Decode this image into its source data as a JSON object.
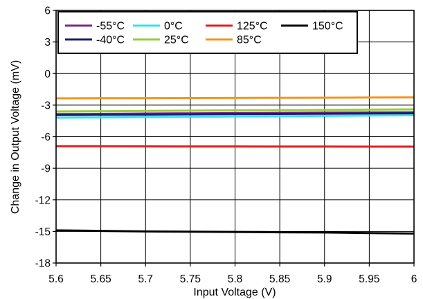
{
  "chart_data": {
    "type": "line",
    "xlabel": "Input Voltage (V)",
    "ylabel": "Change in Output Voltage (mV)",
    "xlim": [
      5.6,
      6.0
    ],
    "ylim": [
      -18,
      6
    ],
    "x_ticks": [
      5.6,
      5.65,
      5.7,
      5.75,
      5.8,
      5.85,
      5.9,
      5.95,
      6.0
    ],
    "x_tick_labels": [
      "5.6",
      "5.65",
      "5.7",
      "5.75",
      "5.8",
      "5.85",
      "5.9",
      "5.95",
      "6"
    ],
    "y_ticks": [
      6,
      3,
      0,
      -3,
      -6,
      -9,
      -12,
      -15,
      -18
    ],
    "y_tick_labels": [
      "6",
      "3",
      "0",
      "-3",
      "-6",
      "-9",
      "-12",
      "-15",
      "-18"
    ],
    "grid": true,
    "legend_position": "top-left",
    "x": [
      5.6,
      5.65,
      5.7,
      5.75,
      5.8,
      5.85,
      5.9,
      5.95,
      6.0
    ],
    "series": [
      {
        "name": "-55°C",
        "color": "#7b2a8c",
        "values": [
          -3.85,
          -3.83,
          -3.8,
          -3.78,
          -3.76,
          -3.74,
          -3.72,
          -3.7,
          -3.68
        ]
      },
      {
        "name": "-40°C",
        "color": "#1c1c6e",
        "values": [
          -3.95,
          -3.92,
          -3.9,
          -3.87,
          -3.85,
          -3.83,
          -3.81,
          -3.79,
          -3.77
        ]
      },
      {
        "name": "0°C",
        "color": "#33e5f2",
        "values": [
          -4.2,
          -4.17,
          -4.14,
          -4.11,
          -4.08,
          -4.05,
          -4.02,
          -3.99,
          -3.96
        ]
      },
      {
        "name": "25°C",
        "color": "#9acc3a",
        "values": [
          -3.6,
          -3.58,
          -3.55,
          -3.53,
          -3.5,
          -3.48,
          -3.46,
          -3.43,
          -3.4
        ]
      },
      {
        "name": "125°C",
        "color": "#e81b1b",
        "values": [
          -6.9,
          -6.91,
          -6.92,
          -6.93,
          -6.93,
          -6.94,
          -6.94,
          -6.95,
          -6.95
        ]
      },
      {
        "name": "85°C",
        "color": "#f7941d",
        "values": [
          -2.35,
          -2.34,
          -2.33,
          -2.32,
          -2.31,
          -2.3,
          -2.29,
          -2.28,
          -2.27
        ]
      },
      {
        "name": "150°C",
        "color": "#000000",
        "values": [
          -14.9,
          -14.95,
          -15.0,
          -15.02,
          -15.05,
          -15.08,
          -15.1,
          -15.15,
          -15.2
        ]
      }
    ],
    "legend_rows": [
      [
        "-55°C",
        "0°C",
        "125°C",
        "150°C"
      ],
      [
        "-40°C",
        "25°C",
        "85°C"
      ]
    ]
  }
}
